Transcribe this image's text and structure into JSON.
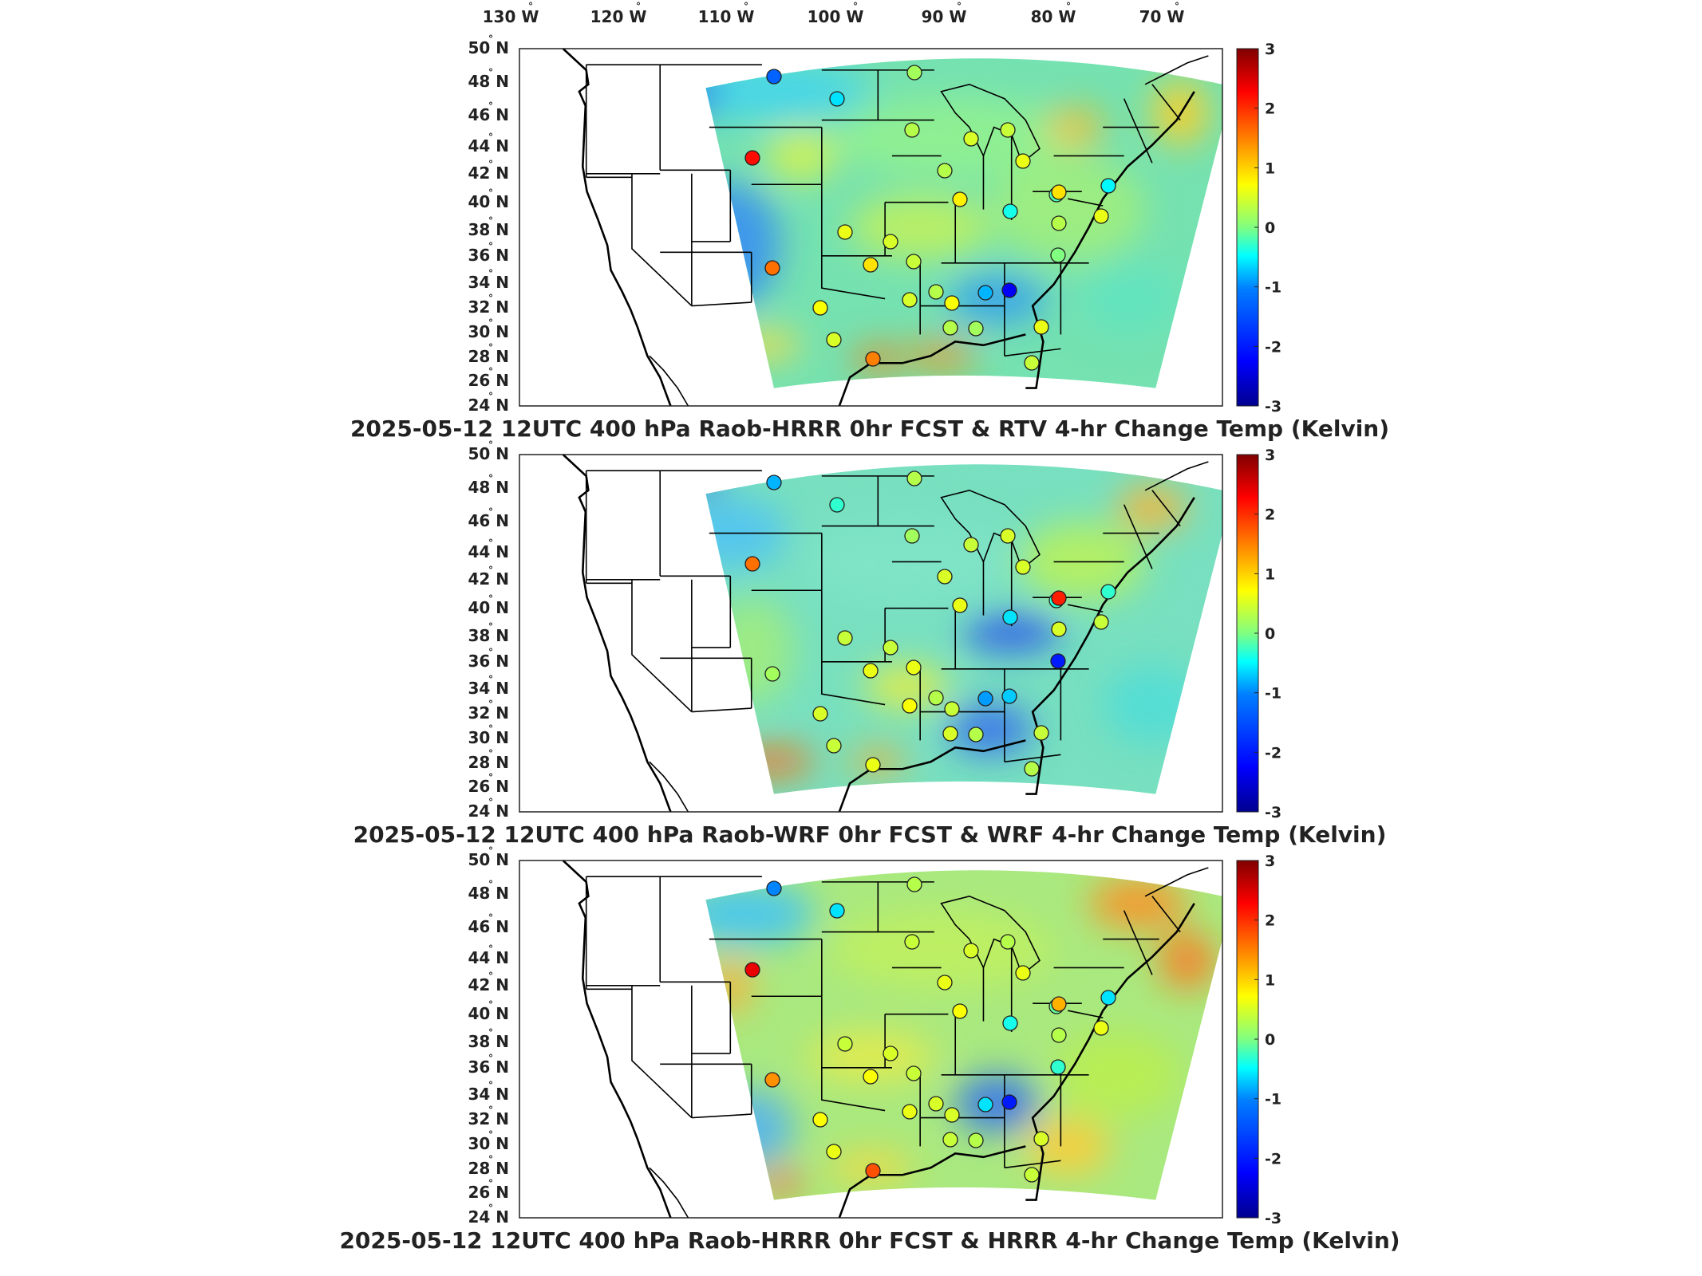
{
  "figure": {
    "top_lon_labels": [
      {
        "value": "130",
        "suffix": "W"
      },
      {
        "value": "120",
        "suffix": "W"
      },
      {
        "value": "110",
        "suffix": "W"
      },
      {
        "value": "100",
        "suffix": "W"
      },
      {
        "value": "90",
        "suffix": "W"
      },
      {
        "value": "80",
        "suffix": "W"
      },
      {
        "value": "70",
        "suffix": "W"
      }
    ],
    "lat_labels": [
      {
        "value": "50",
        "suffix": "N"
      },
      {
        "value": "48",
        "suffix": "N"
      },
      {
        "value": "46",
        "suffix": "N"
      },
      {
        "value": "44",
        "suffix": "N"
      },
      {
        "value": "42",
        "suffix": "N"
      },
      {
        "value": "40",
        "suffix": "N"
      },
      {
        "value": "38",
        "suffix": "N"
      },
      {
        "value": "36",
        "suffix": "N"
      },
      {
        "value": "34",
        "suffix": "N"
      },
      {
        "value": "32",
        "suffix": "N"
      },
      {
        "value": "30",
        "suffix": "N"
      },
      {
        "value": "28",
        "suffix": "N"
      },
      {
        "value": "26",
        "suffix": "N"
      },
      {
        "value": "24",
        "suffix": "N"
      }
    ],
    "colorbar_ticks": [
      "3",
      "2",
      "1",
      "0",
      "-1",
      "-2",
      "-3"
    ],
    "colorbar_range": [
      -3,
      3
    ],
    "colormap": [
      "#00008f",
      "#0000ff",
      "#0080ff",
      "#00ffff",
      "#80ff80",
      "#ffff00",
      "#ff8000",
      "#ff0000",
      "#800000"
    ]
  },
  "panels": [
    {
      "title": "2025-05-12 12UTC 400 hPa Raob-HRRR 0hr FCST & RTV 4-hr Change Temp (Kelvin)",
      "stations": [
        {
          "id": "s01",
          "v": -1.3
        },
        {
          "id": "s02",
          "v": -0.6
        },
        {
          "id": "s03",
          "v": 2.2
        },
        {
          "id": "s04",
          "v": 0.2
        },
        {
          "id": "s05",
          "v": 0.3
        },
        {
          "id": "s06",
          "v": 0.5
        },
        {
          "id": "s07",
          "v": 0.4
        },
        {
          "id": "s08",
          "v": 0.6
        },
        {
          "id": "s09",
          "v": 0.3
        },
        {
          "id": "s10",
          "v": 0.8
        },
        {
          "id": "s11",
          "v": 0.6
        },
        {
          "id": "s12",
          "v": -0.4
        },
        {
          "id": "s13",
          "v": -0.2
        },
        {
          "id": "s14",
          "v": 1.6
        },
        {
          "id": "s15",
          "v": 0.7
        },
        {
          "id": "s16",
          "v": 0.5
        },
        {
          "id": "s17",
          "v": 0.4
        },
        {
          "id": "s18",
          "v": 0.3
        },
        {
          "id": "s19",
          "v": -2.3
        },
        {
          "id": "s20",
          "v": -0.8
        },
        {
          "id": "s21",
          "v": 0.0
        },
        {
          "id": "s22",
          "v": 0.9
        },
        {
          "id": "s23",
          "v": 0.5
        },
        {
          "id": "s24",
          "v": 0.7
        },
        {
          "id": "s25",
          "v": 0.2
        },
        {
          "id": "s26",
          "v": 0.3
        },
        {
          "id": "s27",
          "v": 1.5
        },
        {
          "id": "s28",
          "v": 0.5
        },
        {
          "id": "s29",
          "v": 0.6
        },
        {
          "id": "s30",
          "v": 0.4
        },
        {
          "id": "s31",
          "v": -0.5
        },
        {
          "id": "s32",
          "v": 0.9
        },
        {
          "id": "s33",
          "v": 0.3
        },
        {
          "id": "s34",
          "v": 0.6
        }
      ]
    },
    {
      "title": "2025-05-12 12UTC 400 hPa Raob-WRF 0hr FCST & WRF 4-hr Change Temp (Kelvin)",
      "stations": [
        {
          "id": "s01",
          "v": -0.8
        },
        {
          "id": "s02",
          "v": -0.3
        },
        {
          "id": "s03",
          "v": 1.6
        },
        {
          "id": "s04",
          "v": 0.3
        },
        {
          "id": "s05",
          "v": 0.2
        },
        {
          "id": "s06",
          "v": 0.4
        },
        {
          "id": "s07",
          "v": 0.5
        },
        {
          "id": "s08",
          "v": 0.5
        },
        {
          "id": "s09",
          "v": 0.5
        },
        {
          "id": "s10",
          "v": 0.6
        },
        {
          "id": "s11",
          "v": 0.4
        },
        {
          "id": "s12",
          "v": -0.6
        },
        {
          "id": "s13",
          "v": -0.3
        },
        {
          "id": "s14",
          "v": 0.2
        },
        {
          "id": "s15",
          "v": 0.5
        },
        {
          "id": "s16",
          "v": 0.4
        },
        {
          "id": "s17",
          "v": 0.6
        },
        {
          "id": "s18",
          "v": 0.3
        },
        {
          "id": "s19",
          "v": -0.7
        },
        {
          "id": "s20",
          "v": -0.9
        },
        {
          "id": "s21",
          "v": -2.0
        },
        {
          "id": "s22",
          "v": 0.6
        },
        {
          "id": "s23",
          "v": 0.7
        },
        {
          "id": "s24",
          "v": 0.4
        },
        {
          "id": "s25",
          "v": 0.3
        },
        {
          "id": "s26",
          "v": 0.5
        },
        {
          "id": "s27",
          "v": 0.6
        },
        {
          "id": "s28",
          "v": 0.4
        },
        {
          "id": "s29",
          "v": 0.4
        },
        {
          "id": "s30",
          "v": 0.3
        },
        {
          "id": "s31",
          "v": -0.3
        },
        {
          "id": "s32",
          "v": 2.1
        },
        {
          "id": "s33",
          "v": 0.5
        },
        {
          "id": "s34",
          "v": 0.4
        }
      ]
    },
    {
      "title": "2025-05-12 12UTC 400 hPa Raob-HRRR 0hr FCST & HRRR 4-hr Change Temp (Kelvin)",
      "stations": [
        {
          "id": "s01",
          "v": -1.0
        },
        {
          "id": "s02",
          "v": -0.6
        },
        {
          "id": "s03",
          "v": 2.4
        },
        {
          "id": "s04",
          "v": 0.3
        },
        {
          "id": "s05",
          "v": 0.4
        },
        {
          "id": "s06",
          "v": 0.5
        },
        {
          "id": "s07",
          "v": 0.3
        },
        {
          "id": "s08",
          "v": 0.6
        },
        {
          "id": "s09",
          "v": 0.6
        },
        {
          "id": "s10",
          "v": 0.7
        },
        {
          "id": "s11",
          "v": 0.4
        },
        {
          "id": "s12",
          "v": -0.4
        },
        {
          "id": "s13",
          "v": -0.1
        },
        {
          "id": "s14",
          "v": 1.4
        },
        {
          "id": "s15",
          "v": 0.7
        },
        {
          "id": "s16",
          "v": 0.5
        },
        {
          "id": "s17",
          "v": 0.4
        },
        {
          "id": "s18",
          "v": 0.5
        },
        {
          "id": "s19",
          "v": -2.0
        },
        {
          "id": "s20",
          "v": -0.6
        },
        {
          "id": "s21",
          "v": -0.3
        },
        {
          "id": "s22",
          "v": 0.7
        },
        {
          "id": "s23",
          "v": 0.6
        },
        {
          "id": "s24",
          "v": 0.5
        },
        {
          "id": "s25",
          "v": 0.3
        },
        {
          "id": "s26",
          "v": 0.4
        },
        {
          "id": "s27",
          "v": 1.8
        },
        {
          "id": "s28",
          "v": 0.6
        },
        {
          "id": "s29",
          "v": 0.5
        },
        {
          "id": "s30",
          "v": 0.4
        },
        {
          "id": "s31",
          "v": -0.6
        },
        {
          "id": "s32",
          "v": 1.2
        },
        {
          "id": "s33",
          "v": 0.3
        },
        {
          "id": "s34",
          "v": 0.6
        }
      ]
    }
  ]
}
